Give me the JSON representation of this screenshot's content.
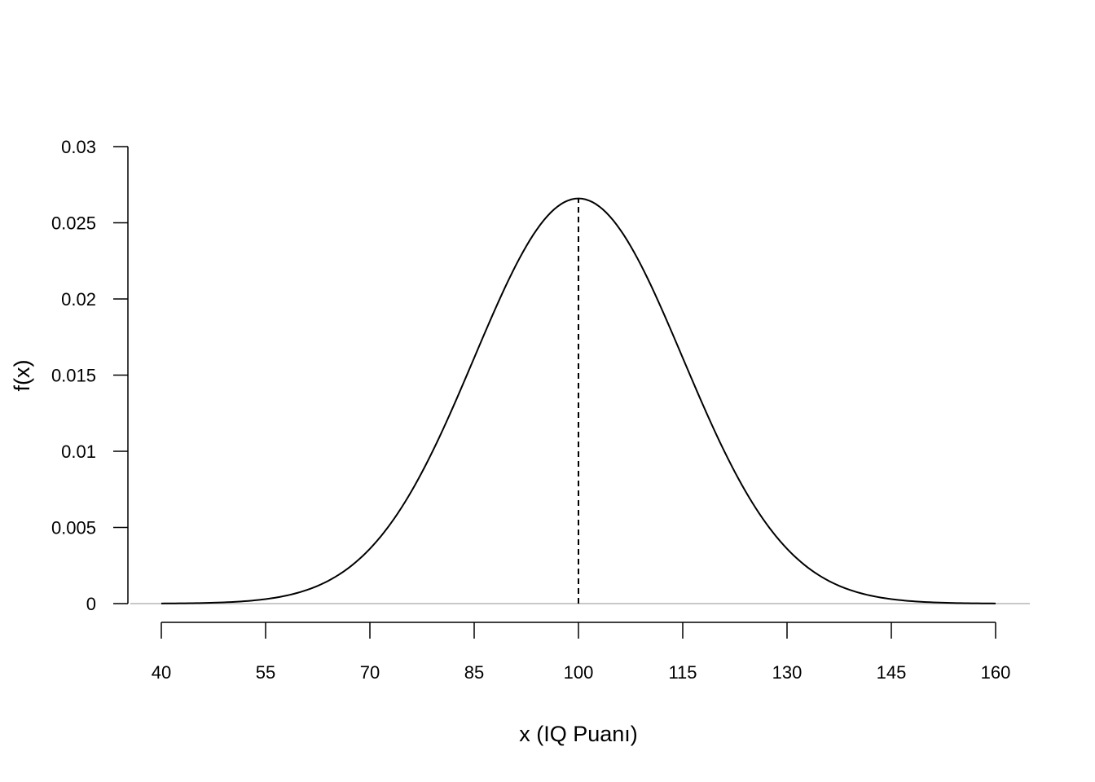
{
  "chart_data": {
    "type": "line",
    "title": "",
    "xlabel": "x (IQ Puanı)",
    "ylabel": "f(x)",
    "xlim": [
      40,
      160
    ],
    "ylim": [
      0,
      0.03
    ],
    "x_ticks": [
      40,
      55,
      70,
      85,
      100,
      115,
      130,
      145,
      160
    ],
    "x_tick_labels": [
      "40",
      "55",
      "70",
      "85",
      "100",
      "115",
      "130",
      "145",
      "160"
    ],
    "y_ticks": [
      0,
      0.005,
      0.01,
      0.015,
      0.02,
      0.025,
      0.03
    ],
    "y_tick_labels": [
      "0",
      "0.005",
      "0.01",
      "0.015",
      "0.02",
      "0.025",
      "0.03"
    ],
    "grid": false,
    "legend": "none",
    "series": [
      {
        "distribution": "normal",
        "mean": 100,
        "sd": 15,
        "x": [
          40,
          45,
          50,
          55,
          60,
          65,
          70,
          75,
          80,
          85,
          90,
          95,
          100,
          105,
          110,
          115,
          120,
          125,
          130,
          135,
          140,
          145,
          150,
          155,
          160
        ],
        "values": [
          1e-05,
          4e-05,
          0.0001,
          0.0003,
          0.00076,
          0.00174,
          0.0036,
          0.00665,
          0.01093,
          0.01613,
          0.0213,
          0.02516,
          0.0266,
          0.02516,
          0.0213,
          0.01613,
          0.01093,
          0.00665,
          0.0036,
          0.00174,
          0.00076,
          0.0003,
          0.0001,
          4e-05,
          1e-05
        ],
        "color": "#000000"
      }
    ],
    "annotations": [
      {
        "kind": "vertical-dashed-line",
        "x": 100,
        "y_from": 0,
        "y_to": 0.0266,
        "color": "#000000"
      },
      {
        "kind": "horizontal-reference-line",
        "y": 0,
        "color": "#c8c8c8"
      }
    ]
  }
}
